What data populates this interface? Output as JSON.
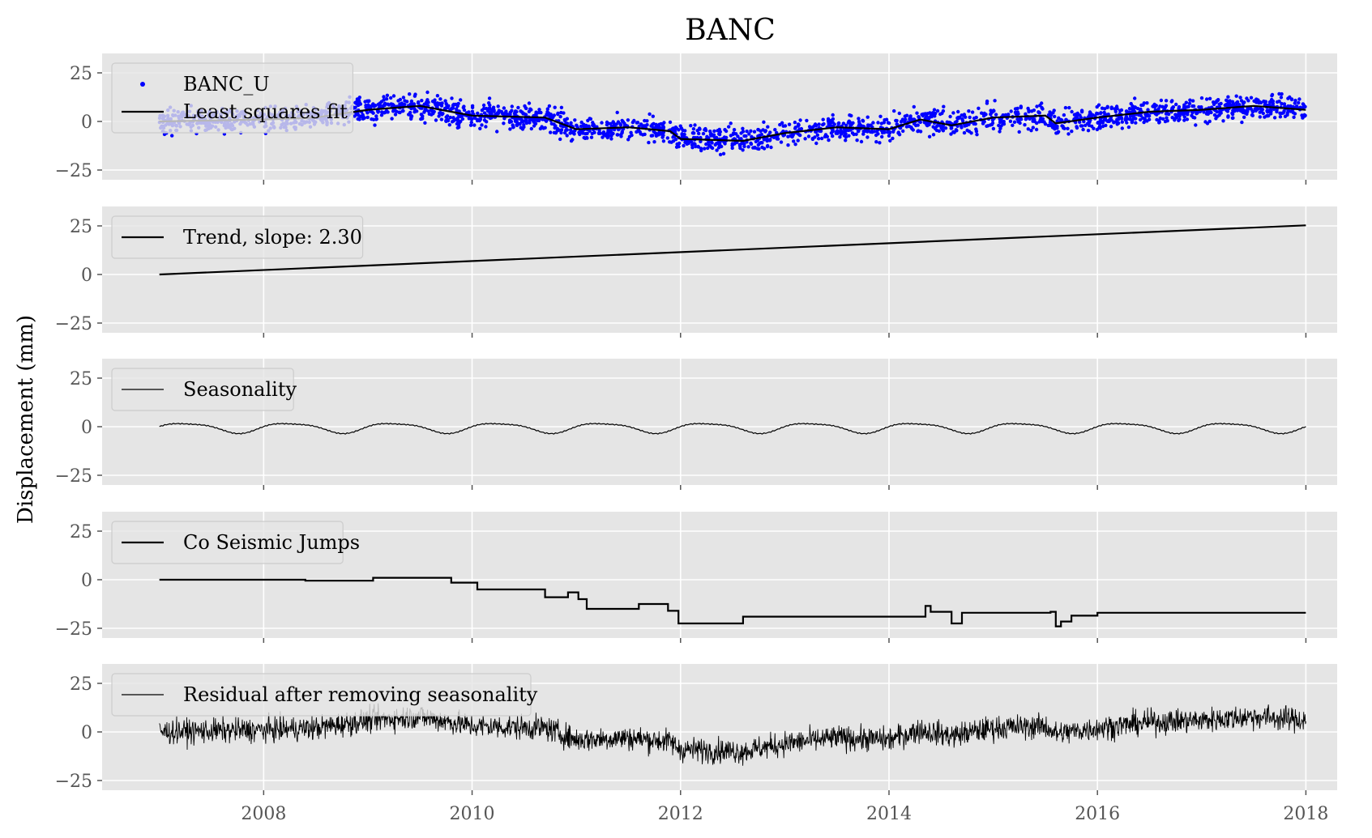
{
  "chart_data": {
    "type": "line",
    "title": "BANC",
    "ylabel": "Displacement (mm)",
    "xlabel": "",
    "x_ticks": [
      2008,
      2010,
      2012,
      2014,
      2016,
      2018
    ],
    "x_tick_labels": [
      "2008",
      "2010",
      "2012",
      "2014",
      "2016",
      "2018"
    ],
    "xlim": [
      2006.45,
      2018.3
    ],
    "grid": true,
    "background": "#e5e5e5",
    "panels": [
      {
        "id": "observations",
        "ylim": [
          -30,
          35
        ],
        "y_ticks": [
          25,
          0,
          -25
        ],
        "y_tick_labels": [
          "25",
          "0",
          "−25"
        ],
        "legend": [
          "BANC_U",
          "Least squares fit"
        ],
        "series": [
          {
            "name": "BANC_U",
            "kind": "scatter",
            "color": "#0000ff",
            "note_x_range": [
              2007.0,
              2018.0
            ],
            "envelope_spread": 7
          },
          {
            "name": "Least squares fit",
            "kind": "line",
            "color": "#000000",
            "x": [
              2007.0,
              2008.0,
              2008.5,
              2009.0,
              2009.5,
              2009.8,
              2010.0,
              2010.7,
              2011.0,
              2011.5,
              2011.9,
              2012.0,
              2012.6,
              2013.0,
              2013.5,
              2014.0,
              2014.3,
              2014.6,
              2015.0,
              2015.5,
              2015.6,
              2016.0,
              2016.5,
              2017.0,
              2017.5,
              2018.0
            ],
            "values": [
              0,
              1,
              2,
              6,
              8,
              5,
              3,
              2,
              -4,
              -3,
              -5,
              -9,
              -10,
              -6,
              -3,
              -4,
              1,
              -2,
              2,
              3,
              -1,
              2,
              5,
              6,
              8,
              6
            ]
          }
        ]
      },
      {
        "id": "trend",
        "ylim": [
          -30,
          35
        ],
        "y_ticks": [
          25,
          0,
          -25
        ],
        "y_tick_labels": [
          "25",
          "0",
          "−25"
        ],
        "legend": [
          "Trend, slope: 2.30"
        ],
        "series": [
          {
            "name": "Trend, slope: 2.30",
            "kind": "line",
            "color": "#000000",
            "x": [
              2007.0,
              2018.0
            ],
            "values": [
              0,
              25.3
            ]
          }
        ]
      },
      {
        "id": "seasonality",
        "ylim": [
          -30,
          35
        ],
        "y_ticks": [
          25,
          0,
          -25
        ],
        "y_tick_labels": [
          "25",
          "0",
          "−25"
        ],
        "legend": [
          "Seasonality"
        ],
        "series": [
          {
            "name": "Seasonality",
            "kind": "periodic",
            "color": "#000000",
            "x_range": [
              2007.0,
              2018.0
            ],
            "period_years": 1,
            "amplitude": 2.5,
            "peak_value": 2,
            "trough_value": -3
          }
        ]
      },
      {
        "id": "jumps",
        "ylim": [
          -30,
          35
        ],
        "y_ticks": [
          25,
          0,
          -25
        ],
        "y_tick_labels": [
          "25",
          "0",
          "−25"
        ],
        "legend": [
          "Co Seismic Jumps"
        ],
        "series": [
          {
            "name": "Co Seismic Jumps",
            "kind": "step",
            "color": "#000000",
            "x": [
              2007.0,
              2008.4,
              2009.05,
              2009.8,
              2010.05,
              2010.7,
              2010.92,
              2011.02,
              2011.1,
              2011.6,
              2011.88,
              2011.98,
              2012.6,
              2014.35,
              2014.4,
              2014.6,
              2014.7,
              2015.55,
              2015.6,
              2015.65,
              2015.75,
              2016.0,
              2018.0
            ],
            "values": [
              0,
              -0.5,
              1,
              -1.5,
              -5,
              -9,
              -6.5,
              -10,
              -15,
              -12.5,
              -16,
              -22.5,
              -19,
              -13.5,
              -16.5,
              -22.5,
              -17,
              -16.5,
              -24,
              -21.5,
              -18.5,
              -17,
              -17
            ]
          }
        ]
      },
      {
        "id": "residual",
        "ylim": [
          -30,
          35
        ],
        "y_ticks": [
          25,
          0,
          -25
        ],
        "y_tick_labels": [
          "25",
          "0",
          "−25"
        ],
        "legend": [
          "Residual after removing seasonality"
        ],
        "series": [
          {
            "name": "Residual after removing seasonality",
            "kind": "noisy-line",
            "color": "#000000",
            "x_range": [
              2007.0,
              2018.0
            ],
            "envelope_spread": 7
          }
        ]
      }
    ]
  }
}
